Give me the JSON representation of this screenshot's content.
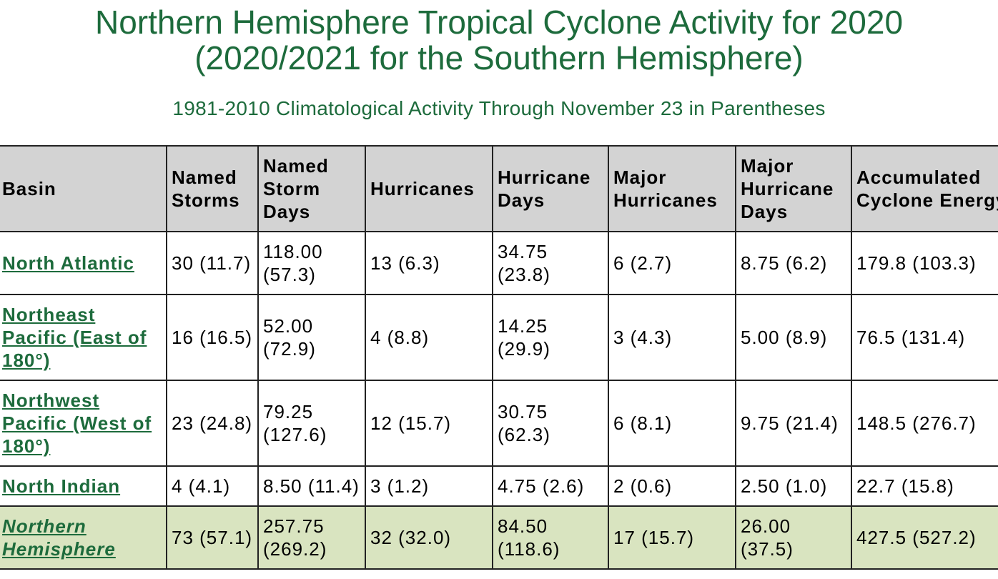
{
  "header": {
    "title": [
      "Northern Hemisphere Tropical Cyclone Activity for 2020",
      "(2020/2021 for the Southern Hemisphere)"
    ],
    "subtitle": "1981-2010 Climatological Activity Through November 23 in Parentheses"
  },
  "table": {
    "columns": [
      "Basin",
      "Named Storms",
      "Named Storm Days",
      "Hurricanes",
      "Hurricane Days",
      "Major Hurricanes",
      "Major Hurricane Days",
      "Accumulated Cyclone Energy"
    ],
    "rows": [
      [
        "North Atlantic",
        "30 (11.7)",
        "118.00 (57.3)",
        "13 (6.3)",
        "34.75 (23.8)",
        "6 (2.7)",
        "8.75 (6.2)",
        "179.8 (103.3)"
      ],
      [
        "Northeast Pacific (East of 180°)",
        "16 (16.5)",
        "52.00 (72.9)",
        "4 (8.8)",
        "14.25 (29.9)",
        "3 (4.3)",
        "5.00 (8.9)",
        "76.5 (131.4)"
      ],
      [
        "Northwest Pacific (West of 180°)",
        "23 (24.8)",
        "79.25 (127.6)",
        "12 (15.7)",
        "30.75 (62.3)",
        "6 (8.1)",
        "9.75 (21.4)",
        "148.5 (276.7)"
      ],
      [
        "North Indian",
        "4 (4.1)",
        "8.50 (11.4)",
        "3 (1.2)",
        "4.75 (2.6)",
        "2 (0.6)",
        "2.50 (1.0)",
        "22.7 (15.8)"
      ],
      [
        "Northern Hemisphere",
        "73 (57.1)",
        "257.75 (269.2)",
        "32 (32.0)",
        "84.50 (118.6)",
        "17 (15.7)",
        "26.00 (37.5)",
        "427.5 (527.2)"
      ]
    ]
  }
}
